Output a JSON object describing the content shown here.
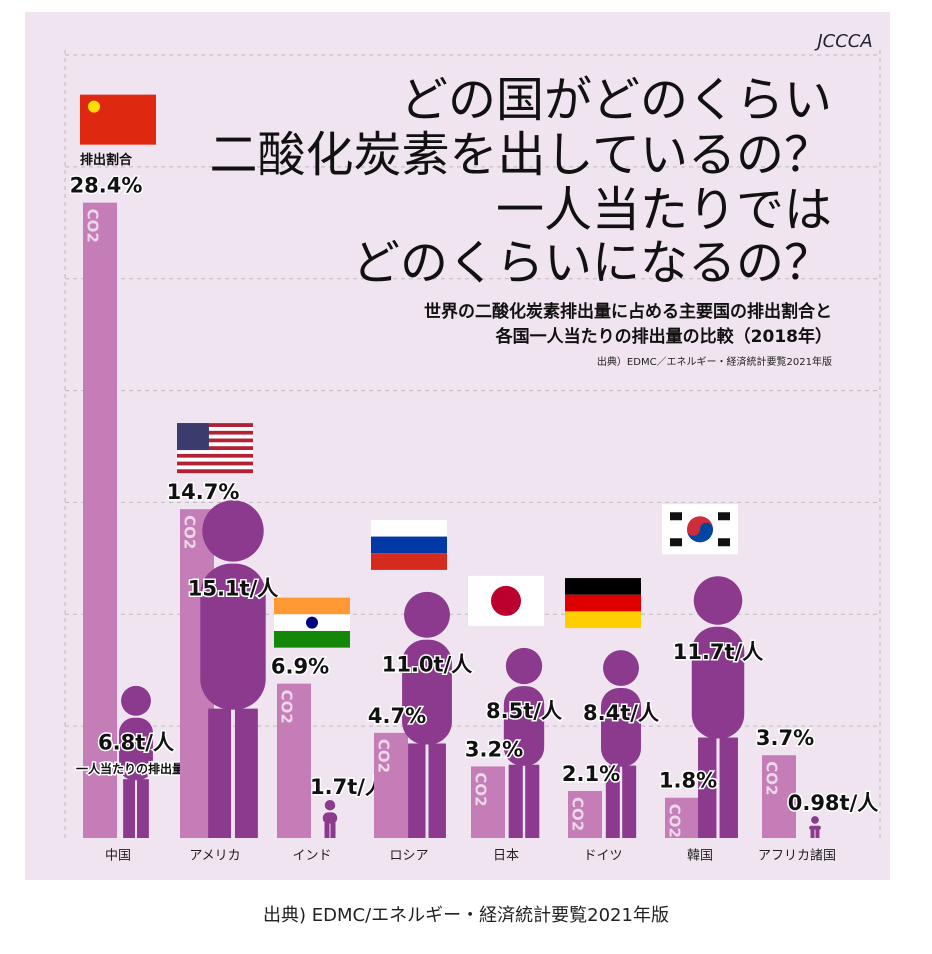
{
  "chart_data": {
    "type": "bar",
    "title": [
      "どの国がどのくらい",
      "二酸化炭素を出しているの？",
      "一人当たりでは",
      "どのくらいになるの？"
    ],
    "subtitle": [
      "世界の二酸化炭素排出量に占める主要国の排出割合と",
      "各国一人当たりの排出量の比較（2018年）"
    ],
    "note": "出典）EDMC／エネルギー・経済統計要覧2021年版",
    "logo": "JCCCA",
    "bar_text": "CO2",
    "categories": [
      "中国",
      "アメリカ",
      "インド",
      "ロシア",
      "日本",
      "ドイツ",
      "韓国",
      "アフリカ諸国"
    ],
    "series": [
      {
        "name": "排出割合",
        "color": "#c47db7",
        "values": [
          28.4,
          14.7,
          6.9,
          4.7,
          3.2,
          2.1,
          1.8,
          3.7
        ],
        "value_labels": [
          "28.4%",
          "14.7%",
          "6.9%",
          "4.7%",
          "3.2%",
          "2.1%",
          "1.8%",
          "3.7%"
        ]
      },
      {
        "name": "一人当たりの排出量",
        "color": "#8b3a8e",
        "values": [
          6.8,
          15.1,
          1.7,
          11.0,
          8.5,
          8.4,
          11.7,
          0.98
        ],
        "value_labels": [
          "6.8t/人",
          "15.1t/人",
          "1.7t/人",
          "11.0t/人",
          "8.5t/人",
          "8.4t/人",
          "11.7t/人",
          "0.98t/人"
        ]
      }
    ],
    "ylim": [
      0,
      35
    ],
    "yticks": [
      5,
      10,
      15,
      20,
      25,
      30,
      35
    ],
    "grid": true
  },
  "caption": "出典) EDMC/エネルギー・経済統計要覧2021年版"
}
